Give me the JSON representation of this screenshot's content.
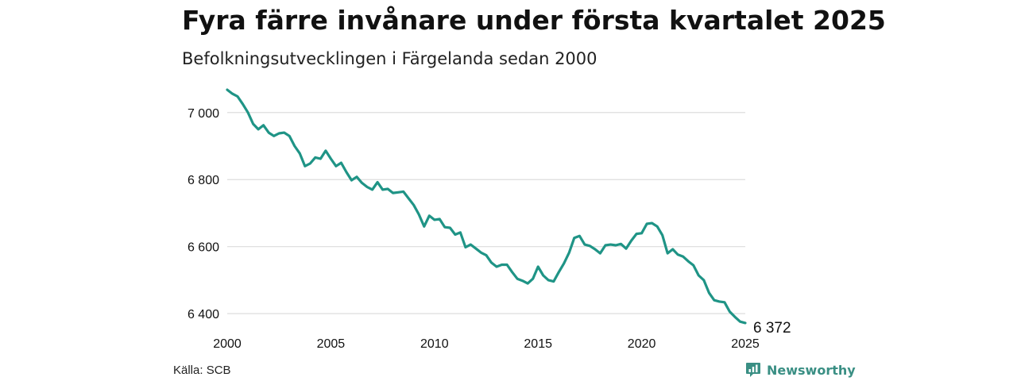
{
  "title": "Fyra färre invånare under första kvartalet 2025",
  "subtitle": "Befolkningsutvecklingen i Färgelanda sedan 2000",
  "source": "Källa: SCB",
  "brand": {
    "name": "Newsworthy",
    "icon": "newsworthy-logo-icon"
  },
  "colors": {
    "line": "#1f9486",
    "grid": "#dddddd",
    "text": "#111111",
    "brand": "#3a8f84"
  },
  "chart_data": {
    "type": "line",
    "title": "Fyra färre invånare under första kvartalet 2025",
    "subtitle": "Befolkningsutvecklingen i Färgelanda sedan 2000",
    "xlabel": "",
    "ylabel": "",
    "xlim": [
      2000,
      2025
    ],
    "ylim": [
      6360,
      7080
    ],
    "grid": true,
    "x_ticks": [
      {
        "value": 2000,
        "label": "2000"
      },
      {
        "value": 2005,
        "label": "2005"
      },
      {
        "value": 2010,
        "label": "2010"
      },
      {
        "value": 2015,
        "label": "2015"
      },
      {
        "value": 2020,
        "label": "2020"
      },
      {
        "value": 2025,
        "label": "2025"
      }
    ],
    "y_ticks": [
      {
        "value": 6400,
        "label": "6 400"
      },
      {
        "value": 6600,
        "label": "6 600"
      },
      {
        "value": 6800,
        "label": "6 800"
      },
      {
        "value": 7000,
        "label": "7 000"
      }
    ],
    "end_label": "6 372",
    "series": [
      {
        "x": [
          2000.0,
          2000.25,
          2000.5,
          2000.75,
          2001.0,
          2001.25,
          2001.5,
          2001.75,
          2002.0,
          2002.25,
          2002.5,
          2002.75,
          2003.0,
          2003.25,
          2003.5,
          2003.75,
          2004.0,
          2004.25,
          2004.5,
          2004.75,
          2005.0,
          2005.25,
          2005.5,
          2005.75,
          2006.0,
          2006.25,
          2006.5,
          2006.75,
          2007.0,
          2007.25,
          2007.5,
          2007.75,
          2008.0,
          2008.25,
          2008.5,
          2008.75,
          2009.0,
          2009.25,
          2009.5,
          2009.75,
          2010.0,
          2010.25,
          2010.5,
          2010.75,
          2011.0,
          2011.25,
          2011.5,
          2011.75,
          2012.0,
          2012.25,
          2012.5,
          2012.75,
          2013.0,
          2013.25,
          2013.5,
          2013.75,
          2014.0,
          2014.25,
          2014.5,
          2014.75,
          2015.0,
          2015.25,
          2015.5,
          2015.75,
          2016.0,
          2016.25,
          2016.5,
          2016.75,
          2017.0,
          2017.25,
          2017.5,
          2017.75,
          2018.0,
          2018.25,
          2018.5,
          2018.75,
          2019.0,
          2019.25,
          2019.5,
          2019.75,
          2020.0,
          2020.25,
          2020.5,
          2020.75,
          2021.0,
          2021.25,
          2021.5,
          2021.75,
          2022.0,
          2022.25,
          2022.5,
          2022.75,
          2023.0,
          2023.25,
          2023.5,
          2023.75,
          2024.0,
          2024.25,
          2024.5,
          2024.75,
          2025.0
        ],
        "values": [
          7068,
          7056,
          7048,
          7025,
          7000,
          6966,
          6950,
          6962,
          6940,
          6930,
          6938,
          6940,
          6930,
          6900,
          6878,
          6840,
          6848,
          6866,
          6862,
          6886,
          6862,
          6840,
          6850,
          6822,
          6798,
          6808,
          6790,
          6778,
          6770,
          6792,
          6770,
          6772,
          6760,
          6762,
          6764,
          6744,
          6724,
          6696,
          6660,
          6692,
          6680,
          6682,
          6658,
          6656,
          6636,
          6642,
          6598,
          6606,
          6594,
          6582,
          6574,
          6552,
          6540,
          6546,
          6546,
          6524,
          6504,
          6498,
          6490,
          6504,
          6540,
          6514,
          6500,
          6496,
          6524,
          6550,
          6582,
          6626,
          6632,
          6606,
          6602,
          6592,
          6580,
          6604,
          6606,
          6604,
          6608,
          6594,
          6618,
          6638,
          6640,
          6668,
          6670,
          6660,
          6634,
          6580,
          6592,
          6576,
          6570,
          6556,
          6544,
          6514,
          6500,
          6462,
          6440,
          6436,
          6434,
          6406,
          6390,
          6376,
          6372
        ]
      }
    ]
  }
}
